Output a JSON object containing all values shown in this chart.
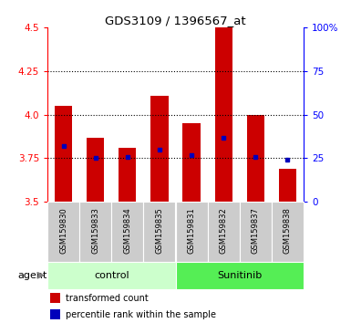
{
  "title": "GDS3109 / 1396567_at",
  "samples": [
    "GSM159830",
    "GSM159833",
    "GSM159834",
    "GSM159835",
    "GSM159831",
    "GSM159832",
    "GSM159837",
    "GSM159838"
  ],
  "transformed_counts": [
    4.05,
    3.87,
    3.81,
    4.11,
    3.95,
    4.5,
    4.0,
    3.69
  ],
  "percentile_ranks": [
    3.82,
    3.75,
    3.76,
    3.8,
    3.77,
    3.87,
    3.76,
    3.74
  ],
  "bar_bottom": 3.5,
  "ylim": [
    3.5,
    4.5
  ],
  "y2lim": [
    0,
    100
  ],
  "yticks": [
    3.5,
    3.75,
    4.0,
    4.25,
    4.5
  ],
  "y2ticks": [
    0,
    25,
    50,
    75,
    100
  ],
  "grid_yticks": [
    3.75,
    4.0,
    4.25
  ],
  "bar_color": "#cc0000",
  "dot_color": "#0000bb",
  "control_color": "#ccffcc",
  "sunitinib_color": "#55ee55",
  "label_bg_color": "#cccccc",
  "legend_red": "transformed count",
  "legend_blue": "percentile rank within the sample",
  "agent_label": "agent",
  "control_label": "control",
  "sunitinib_label": "Sunitinib",
  "n_control": 4,
  "n_sunitinib": 4
}
